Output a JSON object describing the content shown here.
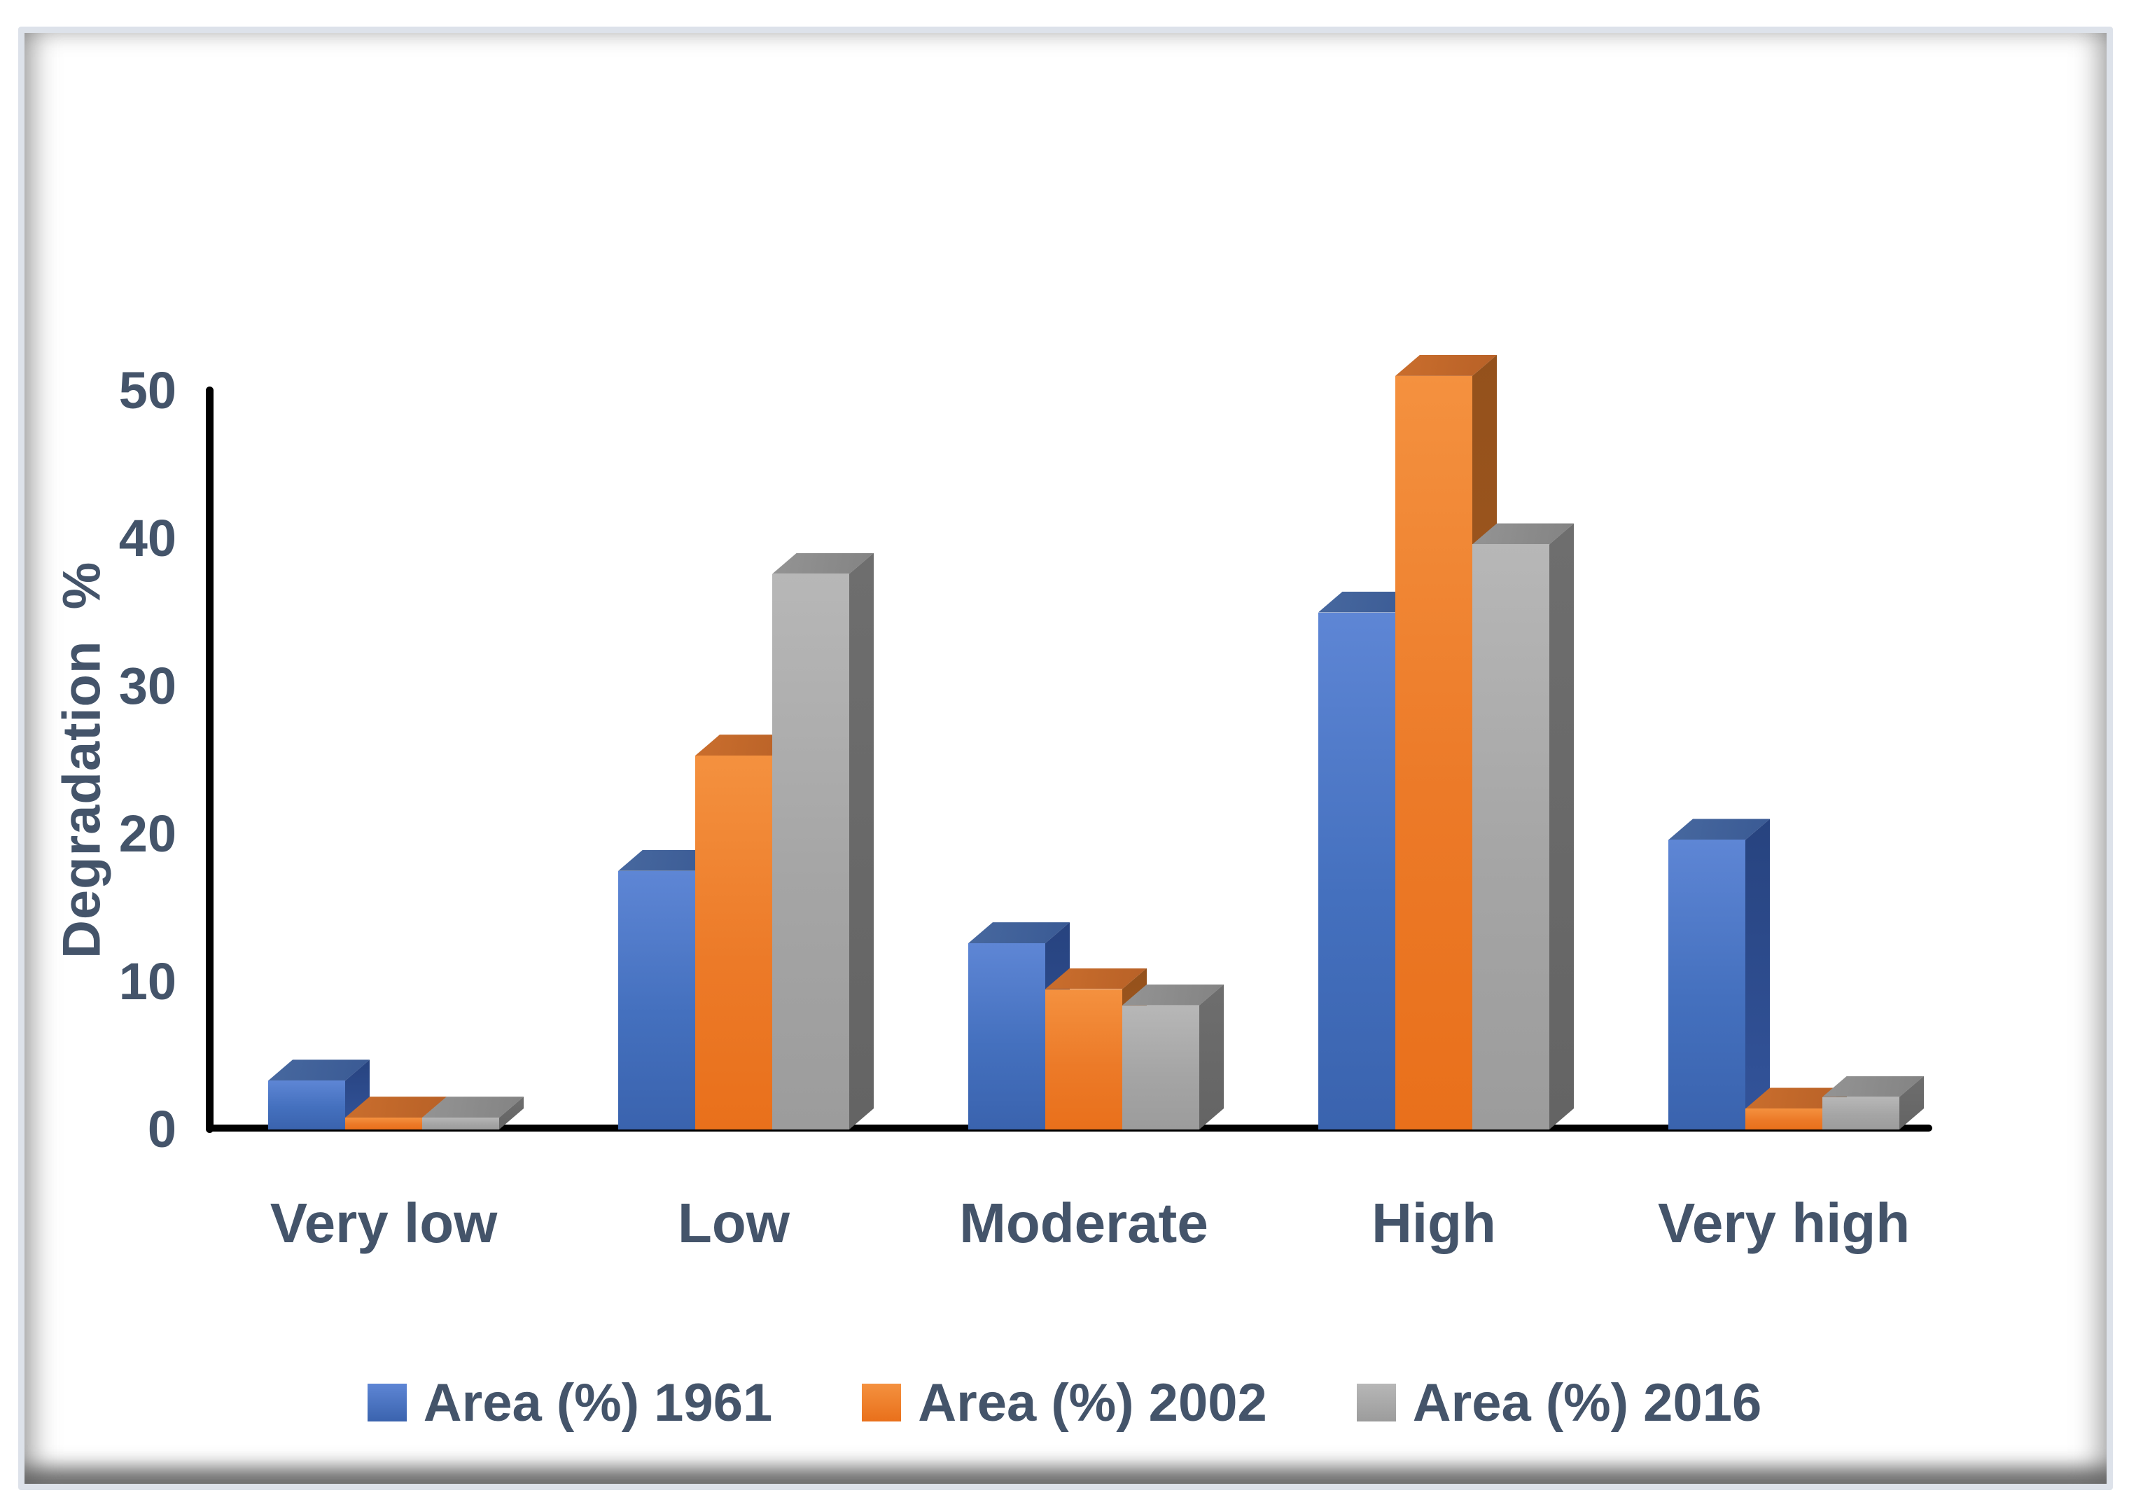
{
  "y_axis": {
    "title_display": "Degradation  %"
  },
  "chart_data": {
    "type": "bar",
    "subtype": "3d-clustered-column",
    "title": "",
    "categories": [
      "Very low",
      "Low",
      "Moderate",
      "High",
      "Very high"
    ],
    "series": [
      {
        "name": "Area (%) 1961",
        "color": "#4472C4",
        "values": [
          3.3,
          17.5,
          12.6,
          35.0,
          19.6
        ]
      },
      {
        "name": "Area (%) 2002",
        "color": "#ED7D31",
        "values": [
          0.8,
          25.3,
          9.5,
          51.0,
          1.4
        ]
      },
      {
        "name": "Area (%) 2016",
        "color": "#A5A5A5",
        "values": [
          0.8,
          37.6,
          8.4,
          39.6,
          2.2
        ]
      }
    ],
    "xlabel": "",
    "ylabel": "Degradation %",
    "ylim": [
      0,
      50
    ],
    "yticks": [
      0,
      10,
      20,
      30,
      40,
      50
    ],
    "grid": false,
    "legend_position": "bottom",
    "text_color": "#44546A",
    "axis_color": "#000000"
  }
}
